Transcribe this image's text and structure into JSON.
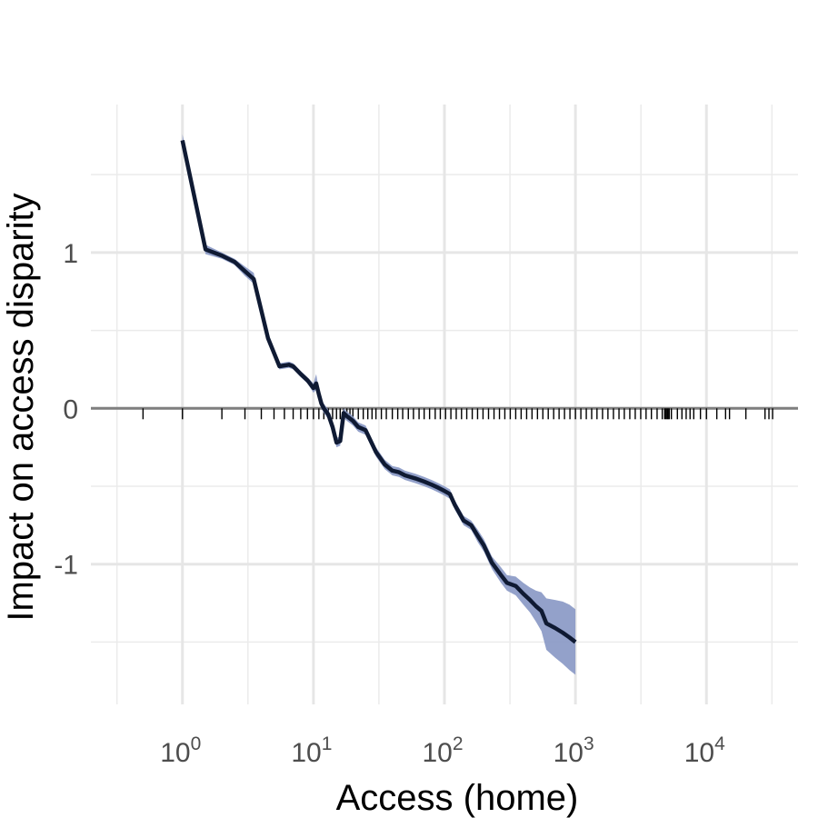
{
  "chart_data": {
    "type": "line",
    "title": "",
    "xlabel": "Access (home)",
    "ylabel": "Impact on access disparity",
    "x_scale": "log10",
    "xlim": [
      0.2,
      50000
    ],
    "ylim": [
      -1.9,
      1.95
    ],
    "grid": true,
    "legend": "none",
    "x_ticks": [
      {
        "value": 1,
        "base": "10",
        "exp": "0"
      },
      {
        "value": 10,
        "base": "10",
        "exp": "1"
      },
      {
        "value": 100,
        "base": "10",
        "exp": "2"
      },
      {
        "value": 1000,
        "base": "10",
        "exp": "3"
      },
      {
        "value": 10000,
        "base": "10",
        "exp": "4"
      }
    ],
    "y_ticks": [
      {
        "value": 1,
        "label": "1"
      },
      {
        "value": 0,
        "label": "0"
      },
      {
        "value": -1,
        "label": "-1"
      }
    ],
    "reference_line_y": 0,
    "series": [
      {
        "color": "#0f1a33",
        "band_color": "#8797c4",
        "x": [
          1,
          1.5,
          2,
          2.5,
          3,
          3.5,
          4.5,
          5.5,
          6.5,
          7,
          8,
          9,
          10,
          10.5,
          11,
          11.5,
          12,
          13,
          14,
          15,
          16,
          17,
          18,
          20,
          22,
          25,
          30,
          35,
          40,
          45,
          50,
          60,
          70,
          80,
          90,
          100,
          110,
          120,
          140,
          160,
          180,
          200,
          230,
          270,
          300,
          350,
          400,
          450,
          500,
          550,
          600,
          700,
          800,
          900,
          1000
        ],
        "y": [
          1.72,
          1.02,
          0.98,
          0.94,
          0.88,
          0.83,
          0.45,
          0.27,
          0.28,
          0.27,
          0.22,
          0.18,
          0.13,
          0.16,
          0.09,
          0.03,
          0.0,
          -0.04,
          -0.12,
          -0.22,
          -0.21,
          -0.03,
          -0.05,
          -0.08,
          -0.12,
          -0.14,
          -0.28,
          -0.36,
          -0.4,
          -0.41,
          -0.43,
          -0.45,
          -0.47,
          -0.49,
          -0.51,
          -0.53,
          -0.55,
          -0.62,
          -0.72,
          -0.75,
          -0.82,
          -0.88,
          -0.99,
          -1.07,
          -1.12,
          -1.14,
          -1.19,
          -1.23,
          -1.27,
          -1.3,
          -1.38,
          -1.41,
          -1.44,
          -1.47,
          -1.5
        ],
        "lower": [
          1.68,
          0.99,
          0.96,
          0.92,
          0.85,
          0.8,
          0.43,
          0.25,
          0.26,
          0.25,
          0.2,
          0.16,
          0.1,
          0.12,
          0.06,
          0.0,
          -0.03,
          -0.07,
          -0.15,
          -0.25,
          -0.24,
          -0.06,
          -0.08,
          -0.11,
          -0.15,
          -0.17,
          -0.31,
          -0.39,
          -0.43,
          -0.44,
          -0.46,
          -0.48,
          -0.5,
          -0.52,
          -0.54,
          -0.56,
          -0.58,
          -0.65,
          -0.75,
          -0.78,
          -0.86,
          -0.92,
          -1.03,
          -1.12,
          -1.17,
          -1.2,
          -1.26,
          -1.31,
          -1.37,
          -1.43,
          -1.55,
          -1.6,
          -1.64,
          -1.68,
          -1.71
        ],
        "upper": [
          1.76,
          1.05,
          1.0,
          0.96,
          0.91,
          0.87,
          0.47,
          0.29,
          0.3,
          0.29,
          0.24,
          0.2,
          0.16,
          0.22,
          0.12,
          0.06,
          0.03,
          -0.01,
          -0.09,
          -0.19,
          -0.18,
          0.0,
          -0.02,
          -0.05,
          -0.09,
          -0.11,
          -0.25,
          -0.33,
          -0.37,
          -0.38,
          -0.4,
          -0.42,
          -0.44,
          -0.46,
          -0.48,
          -0.5,
          -0.52,
          -0.59,
          -0.69,
          -0.72,
          -0.78,
          -0.84,
          -0.95,
          -1.02,
          -1.07,
          -1.08,
          -1.12,
          -1.15,
          -1.17,
          -1.18,
          -1.22,
          -1.23,
          -1.24,
          -1.26,
          -1.29
        ]
      }
    ],
    "rug_x": [
      0.5,
      1,
      2,
      3,
      4,
      5,
      6,
      7,
      8,
      9,
      10,
      11,
      12,
      13,
      14,
      15,
      16,
      17,
      18,
      19,
      20,
      22,
      24,
      26,
      28,
      30,
      33,
      36,
      40,
      44,
      48,
      53,
      58,
      64,
      70,
      77,
      85,
      93,
      102,
      112,
      123,
      135,
      148,
      163,
      179,
      197,
      217,
      239,
      263,
      289,
      318,
      350,
      385,
      424,
      466,
      513,
      564,
      620,
      682,
      750,
      825,
      908,
      1000,
      1100,
      1210,
      1330,
      1460,
      1610,
      1770,
      1950,
      2150,
      2360,
      2600,
      2860,
      3150,
      3460,
      3800,
      4200,
      4600,
      4800,
      4900,
      5000,
      5100,
      5200,
      5400,
      6000,
      6500,
      7000,
      7500,
      8000,
      9000,
      10000,
      12000,
      14000,
      15000,
      20000,
      28000,
      30000,
      32000
    ]
  }
}
